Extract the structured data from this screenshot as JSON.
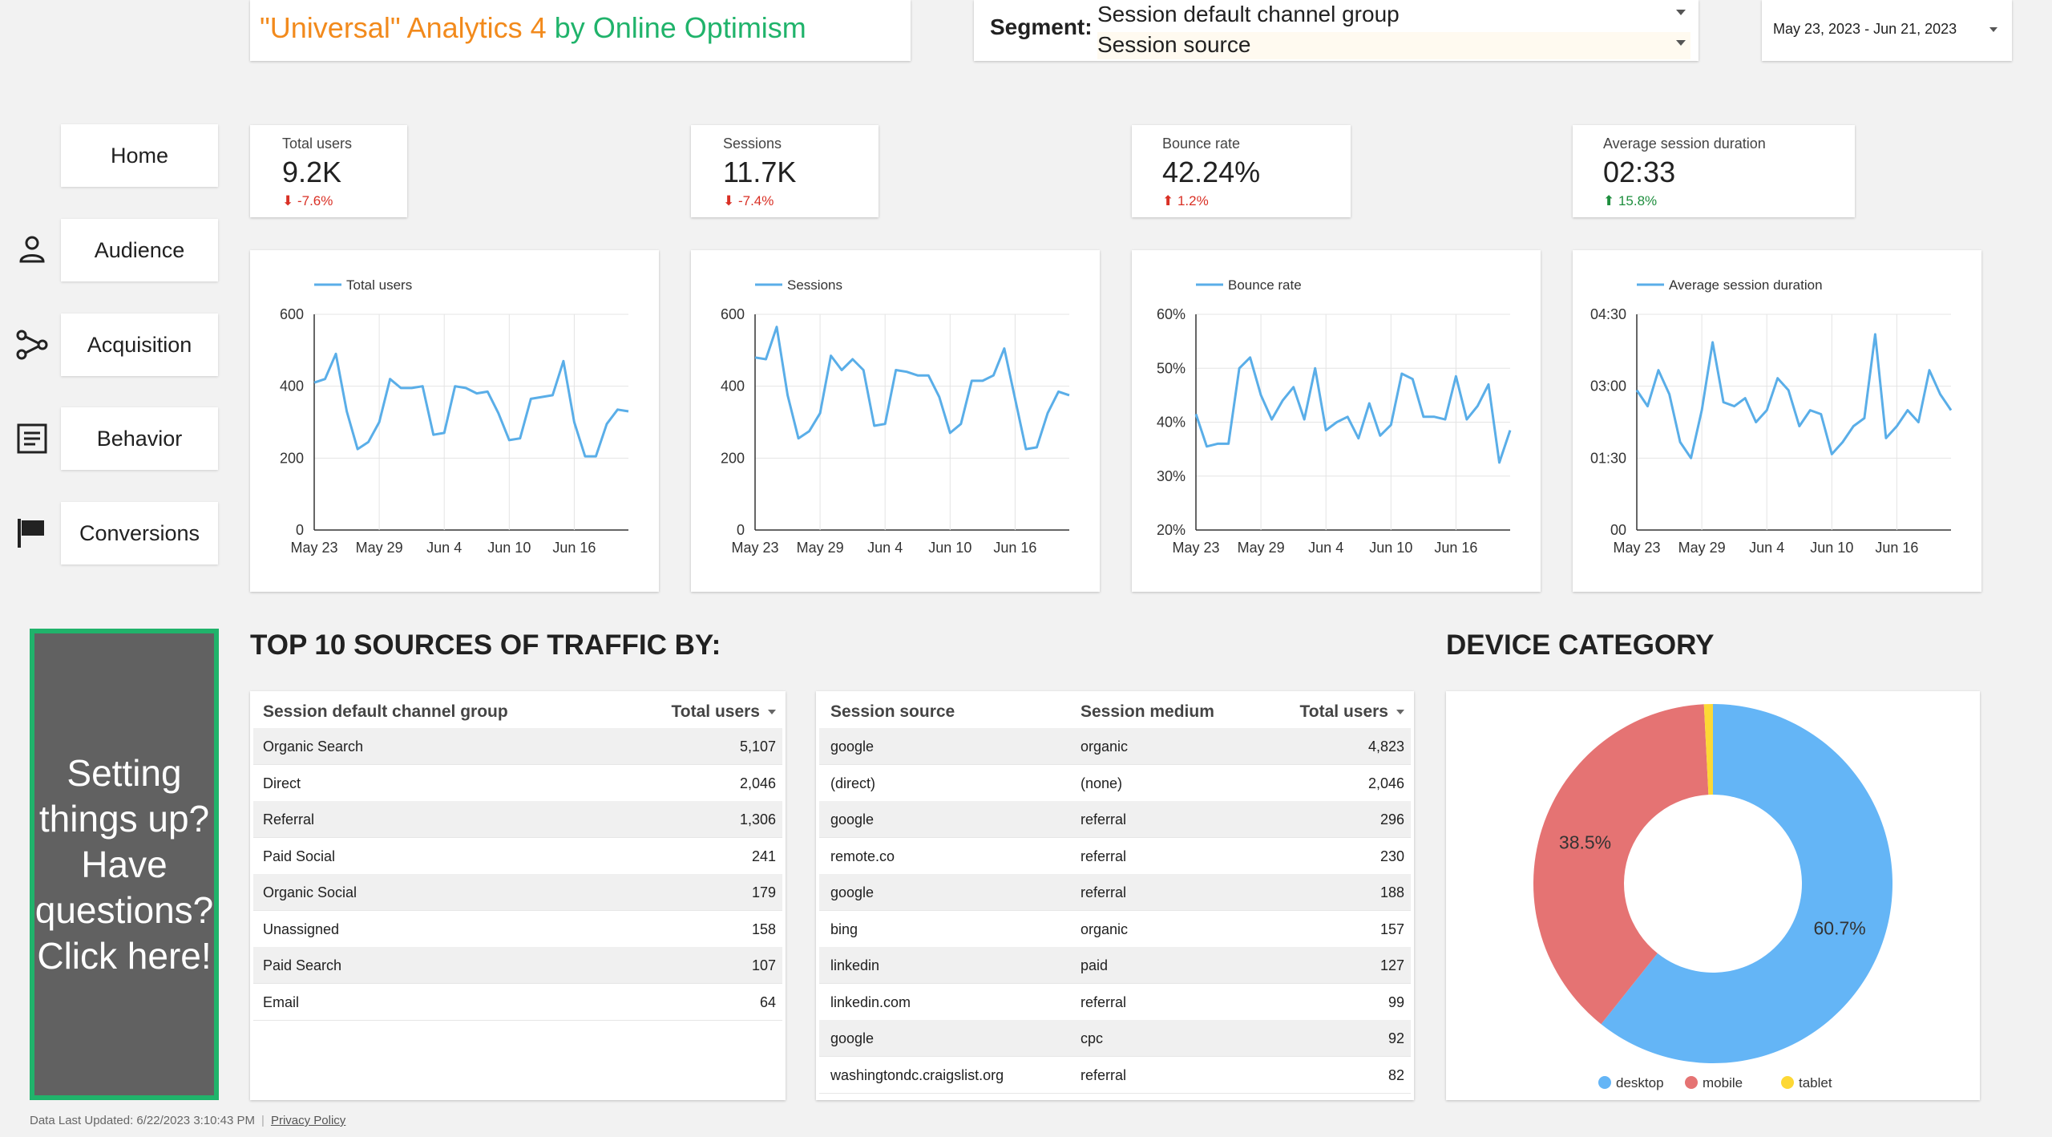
{
  "header": {
    "title_part1": "\"Universal\" Analytics 4",
    "title_part2": " by Online Optimism",
    "segment_label": "Segment:",
    "segment_select_1": "Session default channel group",
    "segment_select_2": "Session source",
    "date_range": "May 23, 2023 - Jun 21, 2023"
  },
  "nav": {
    "home": "Home",
    "audience": "Audience",
    "acquisition": "Acquisition",
    "behavior": "Behavior",
    "conversions": "Conversions"
  },
  "kpis": [
    {
      "label": "Total users",
      "value": "9.2K",
      "delta": "-7.6%",
      "direction": "down"
    },
    {
      "label": "Sessions",
      "value": "11.7K",
      "delta": "-7.4%",
      "direction": "down"
    },
    {
      "label": "Bounce rate",
      "value": "42.24%",
      "delta": "1.2%",
      "direction": "up"
    },
    {
      "label": "Average session duration",
      "value": "02:33",
      "delta": "15.8%",
      "direction": "up"
    }
  ],
  "colors": {
    "accent_orange": "#f28a1c",
    "accent_green": "#20b36b",
    "line_blue": "#5aaee8",
    "delta_down": "#d93025",
    "delta_up": "#1e8e3e",
    "pie_desktop": "#64b5f6",
    "pie_mobile": "#e57373",
    "pie_tablet": "#fdd835"
  },
  "help_box": {
    "text": "Setting things up? Have questions? Click here!"
  },
  "sections": {
    "traffic_title": "TOP 10 SOURCES OF TRAFFIC BY:",
    "device_title": "DEVICE CATEGORY"
  },
  "channel_table": {
    "headers": [
      "Session default channel group",
      "Total users"
    ],
    "rows": [
      [
        "Organic Search",
        "5,107"
      ],
      [
        "Direct",
        "2,046"
      ],
      [
        "Referral",
        "1,306"
      ],
      [
        "Paid Social",
        "241"
      ],
      [
        "Organic Social",
        "179"
      ],
      [
        "Unassigned",
        "158"
      ],
      [
        "Paid Search",
        "107"
      ],
      [
        "Email",
        "64"
      ]
    ]
  },
  "source_table": {
    "headers": [
      "Session source",
      "Session medium",
      "Total users"
    ],
    "rows": [
      [
        "google",
        "organic",
        "4,823"
      ],
      [
        "(direct)",
        "(none)",
        "2,046"
      ],
      [
        "google",
        "referral",
        "296"
      ],
      [
        "remote.co",
        "referral",
        "230"
      ],
      [
        "google",
        "referral",
        "188"
      ],
      [
        "bing",
        "organic",
        "157"
      ],
      [
        "linkedin",
        "paid",
        "127"
      ],
      [
        "linkedin.com",
        "referral",
        "99"
      ],
      [
        "google",
        "cpc",
        "92"
      ],
      [
        "washingtondc.craigslist.org",
        "referral",
        "82"
      ]
    ]
  },
  "footer": {
    "updated": "Data Last Updated: 6/22/2023 3:10:43 PM",
    "privacy": "Privacy Policy"
  },
  "chart_data": [
    {
      "type": "line",
      "title": "Total users",
      "series": [
        {
          "name": "Total users",
          "values": [
            410,
            420,
            490,
            330,
            225,
            245,
            300,
            420,
            395,
            395,
            400,
            265,
            270,
            400,
            395,
            380,
            385,
            325,
            250,
            255,
            365,
            370,
            375,
            470,
            300,
            205,
            205,
            295,
            335,
            330
          ]
        }
      ],
      "x_ticks": [
        "May 23",
        "May 29",
        "Jun 4",
        "Jun 10",
        "Jun 16"
      ],
      "y_ticks": [
        "0",
        "200",
        "400",
        "600"
      ],
      "ylim": [
        0,
        600
      ]
    },
    {
      "type": "line",
      "title": "Sessions",
      "series": [
        {
          "name": "Sessions",
          "values": [
            480,
            475,
            565,
            375,
            255,
            275,
            325,
            485,
            445,
            475,
            445,
            290,
            295,
            445,
            440,
            430,
            430,
            370,
            270,
            295,
            415,
            415,
            430,
            505,
            365,
            225,
            230,
            325,
            385,
            375
          ]
        }
      ],
      "x_ticks": [
        "May 23",
        "May 29",
        "Jun 4",
        "Jun 10",
        "Jun 16"
      ],
      "y_ticks": [
        "0",
        "200",
        "400",
        "600"
      ],
      "ylim": [
        0,
        600
      ]
    },
    {
      "type": "line",
      "title": "Bounce rate",
      "series": [
        {
          "name": "Bounce rate",
          "values": [
            41.5,
            35.5,
            36,
            36,
            50,
            52,
            45,
            40.5,
            44,
            46.5,
            40.5,
            50,
            38.5,
            40,
            41,
            37,
            43.5,
            37.5,
            39.5,
            49,
            48,
            41,
            41,
            40.5,
            48.5,
            40.5,
            43,
            47,
            32.5,
            38.5
          ]
        }
      ],
      "x_ticks": [
        "May 23",
        "May 29",
        "Jun 4",
        "Jun 10",
        "Jun 16"
      ],
      "y_ticks": [
        "20%",
        "30%",
        "40%",
        "50%",
        "60%"
      ],
      "ylim": [
        20,
        60
      ]
    },
    {
      "type": "line",
      "title": "Average session duration",
      "series": [
        {
          "name": "Average session duration",
          "values": [
            175,
            155,
            200,
            170,
            110,
            90,
            150,
            235,
            160,
            155,
            165,
            135,
            150,
            190,
            175,
            130,
            150,
            145,
            95,
            110,
            130,
            140,
            245,
            115,
            130,
            150,
            135,
            200,
            170,
            150
          ]
        }
      ],
      "x_ticks": [
        "May 23",
        "May 29",
        "Jun 4",
        "Jun 10",
        "Jun 16"
      ],
      "y_ticks": [
        "00",
        "01:30",
        "03:00",
        "04:30"
      ],
      "ylim": [
        0,
        270
      ]
    },
    {
      "type": "pie",
      "title": "DEVICE CATEGORY",
      "categories": [
        "desktop",
        "mobile",
        "tablet"
      ],
      "values": [
        60.7,
        38.5,
        0.8
      ],
      "labels": [
        "60.7%",
        "38.5%",
        ""
      ],
      "legend_position": "bottom"
    }
  ]
}
